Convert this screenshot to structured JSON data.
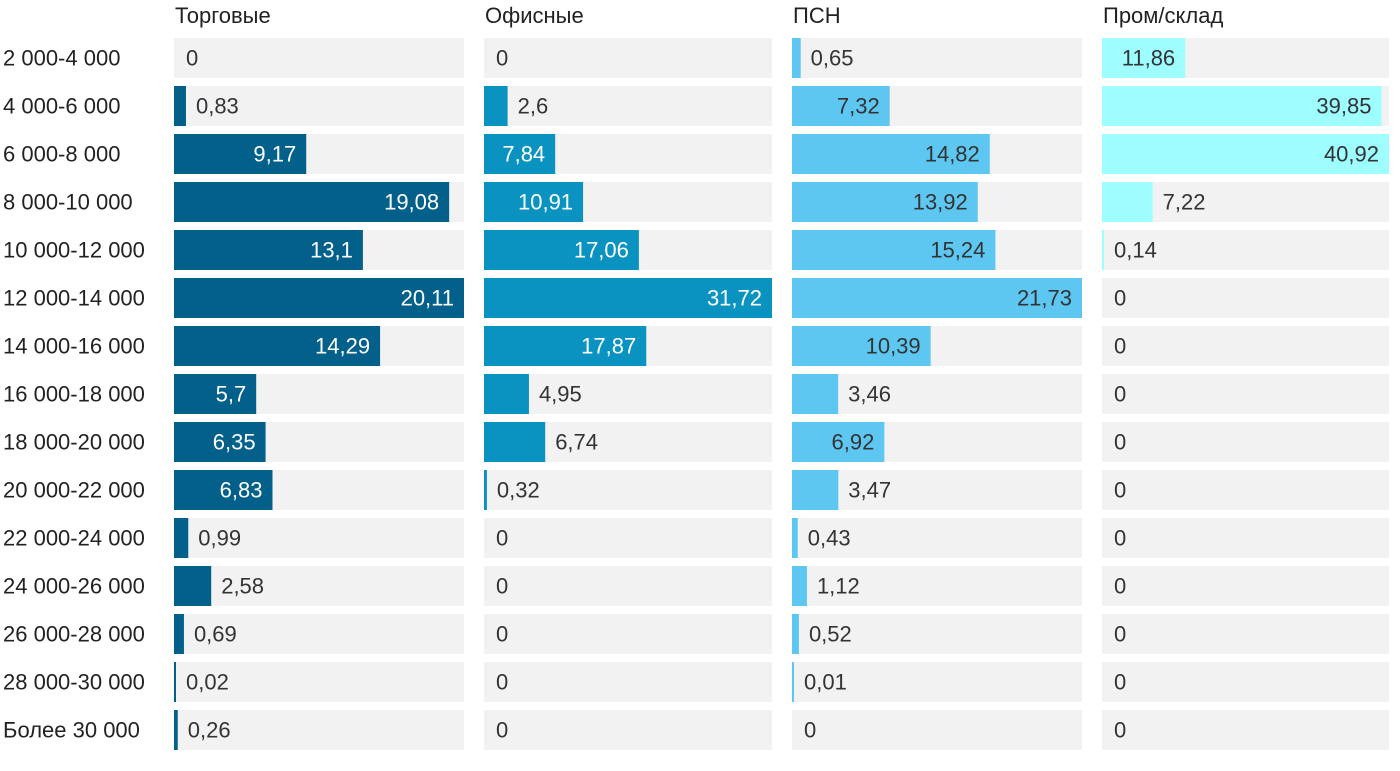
{
  "chart_data": {
    "type": "bar",
    "orientation": "horizontal",
    "layout": "small-multiples",
    "categories": [
      "2 000-4 000",
      "4 000-6 000",
      "6 000-8 000",
      "8 000-10 000",
      "10 000-12 000",
      "12 000-14 000",
      "14 000-16 000",
      "16 000-18 000",
      "18 000-20 000",
      "20 000-22 000",
      "22 000-24 000",
      "24 000-26 000",
      "26 000-28 000",
      "28 000-30 000",
      "Более 30 000"
    ],
    "value_labels": {
      "Торговые": [
        "0",
        "0,83",
        "9,17",
        "19,08",
        "13,1",
        "20,11",
        "14,29",
        "5,7",
        "6,35",
        "6,83",
        "0,99",
        "2,58",
        "0,69",
        "0,02",
        "0,26"
      ],
      "Офисные": [
        "0",
        "2,6",
        "7,84",
        "10,91",
        "17,06",
        "31,72",
        "17,87",
        "4,95",
        "6,74",
        "0,32",
        "0",
        "0",
        "0",
        "0",
        "0"
      ],
      "ПСН": [
        "0,65",
        "7,32",
        "14,82",
        "13,92",
        "15,24",
        "21,73",
        "10,39",
        "3,46",
        "6,92",
        "3,47",
        "0,43",
        "1,12",
        "0,52",
        "0,01",
        "0"
      ],
      "Пром/склад": [
        "11,86",
        "39,85",
        "40,92",
        "7,22",
        "0,14",
        "0",
        "0",
        "0",
        "0",
        "0",
        "0",
        "0",
        "0",
        "0",
        "0"
      ]
    },
    "series": [
      {
        "name": "Торговые",
        "color": "#03608a",
        "max": 20.11,
        "values": [
          0,
          0.83,
          9.17,
          19.08,
          13.1,
          20.11,
          14.29,
          5.7,
          6.35,
          6.83,
          0.99,
          2.58,
          0.69,
          0.02,
          0.26
        ]
      },
      {
        "name": "Офисные",
        "color": "#0a93c0",
        "max": 31.72,
        "values": [
          0,
          2.6,
          7.84,
          10.91,
          17.06,
          31.72,
          17.87,
          4.95,
          6.74,
          0.32,
          0,
          0,
          0,
          0,
          0
        ]
      },
      {
        "name": "ПСН",
        "color": "#5dc7f1",
        "max": 21.73,
        "values": [
          0.65,
          7.32,
          14.82,
          13.92,
          15.24,
          21.73,
          10.39,
          3.46,
          6.92,
          3.47,
          0.43,
          1.12,
          0.52,
          0.01,
          0
        ]
      },
      {
        "name": "Пром/склад",
        "color": "#9dfdff",
        "max": 40.92,
        "values": [
          11.86,
          39.85,
          40.92,
          7.22,
          0.14,
          0,
          0,
          0,
          0,
          0,
          0,
          0,
          0,
          0,
          0
        ]
      }
    ],
    "track_color": "#f2f2f2",
    "label_color_inside_dark": "#ffffff",
    "label_color_inside_light": "#333333",
    "label_color_outside": "#333333",
    "category_label_color": "#222222",
    "title": "",
    "xlabel": "",
    "ylabel": ""
  }
}
